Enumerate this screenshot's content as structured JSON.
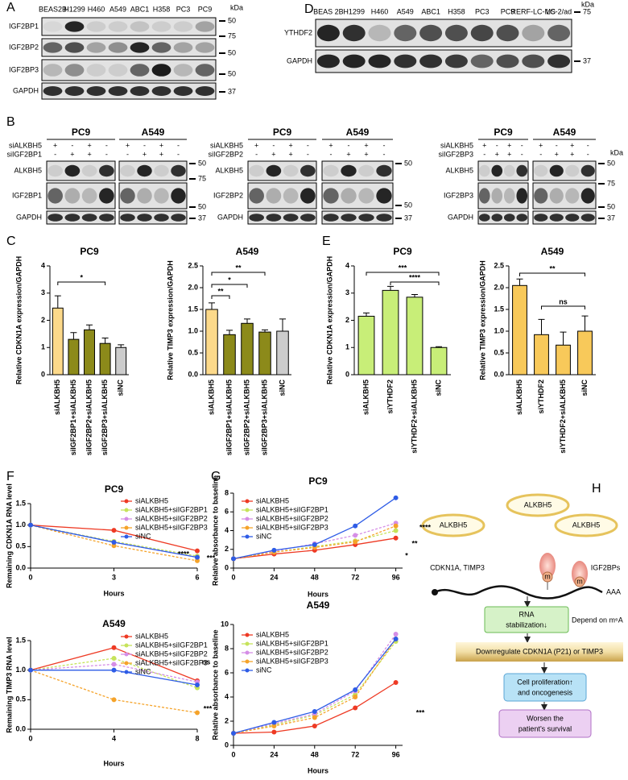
{
  "panels": [
    "A",
    "B",
    "C",
    "D",
    "E",
    "F",
    "G",
    "H"
  ],
  "blots": {
    "A": {
      "kda": "kDa",
      "lanes": [
        "BEAS2B",
        "H1299",
        "H460",
        "A549",
        "ABC1",
        "H358",
        "PC3",
        "PC9"
      ],
      "rows": [
        "IGF2BP1",
        "IGF2BP2",
        "IGF2BP3",
        "GAPDH"
      ],
      "markers": [
        50,
        75,
        50,
        50,
        37
      ]
    },
    "D": {
      "kda": "kDa",
      "lanes": [
        "BEAS 2B",
        "H1299",
        "H460",
        "A549",
        "ABC1",
        "H358",
        "PC3",
        "PC9",
        "RERF-LC-MS",
        "LC-2/ad"
      ],
      "rows": [
        "YTHDF2",
        "GAPDH"
      ],
      "markers": [
        75,
        37
      ]
    },
    "B": {
      "kda": "kDa",
      "sets": [
        {
          "cells": [
            "PC9",
            "A549"
          ],
          "treat": [
            {
              "label": "siALKBH5",
              "signs": [
                "+",
                "-",
                "+",
                "-",
                "+",
                "-",
                "+",
                "-"
              ]
            },
            {
              "label": "siIGF2BP1",
              "signs": [
                "-",
                "+",
                "+",
                "-",
                "-",
                "+",
                "+",
                "-"
              ]
            }
          ],
          "rows": [
            "ALKBH5",
            "IGF2BP1",
            "GAPDH"
          ],
          "markers": [
            50,
            75,
            50,
            37
          ]
        },
        {
          "cells": [
            "PC9",
            "A549"
          ],
          "treat": [
            {
              "label": "siALKBH5",
              "signs": [
                "+",
                "-",
                "+",
                "-",
                "+",
                "-",
                "+",
                "-"
              ]
            },
            {
              "label": "siIGF2BP2",
              "signs": [
                "-",
                "+",
                "+",
                "-",
                "-",
                "+",
                "+",
                "-"
              ]
            }
          ],
          "rows": [
            "ALKBH5",
            "IGF2BP2",
            "GAPDH"
          ],
          "markers": [
            50,
            50,
            37
          ]
        },
        {
          "cells": [
            "PC9",
            "A549"
          ],
          "treat": [
            {
              "label": "siALKBH5",
              "signs": [
                "+",
                "-",
                "+",
                "-",
                "+",
                "-",
                "+",
                "-"
              ]
            },
            {
              "label": "siIGF2BP3",
              "signs": [
                "-",
                "+",
                "+",
                "-",
                "-",
                "+",
                "+",
                "-"
              ]
            }
          ],
          "rows": [
            "ALKBH5",
            "IGF2BP3",
            "GAPDH"
          ],
          "markers": [
            50,
            75,
            50,
            37
          ]
        }
      ]
    }
  },
  "chart_data": [
    {
      "type": "bar",
      "title": "PC9",
      "ylabel": "Relative CDKN1A expression/GAPDH",
      "categories": [
        "siALKBH5",
        "siIGF2BP1+siALKBH5",
        "siIGF2BP2+siALKBH5",
        "siIGF2BP3+siALKBH5",
        "siNC"
      ],
      "values": [
        2.45,
        1.3,
        1.65,
        1.15,
        1.0
      ],
      "errors": [
        0.45,
        0.25,
        0.18,
        0.2,
        0.1
      ],
      "colors": [
        "#fcd98a",
        "#8c8a1a",
        "#8c8a1a",
        "#8c8a1a",
        "#cccccc"
      ],
      "ylim": [
        0,
        4
      ],
      "yticks": [
        0,
        1,
        2,
        3,
        4
      ],
      "annotations": [
        "*"
      ]
    },
    {
      "type": "bar",
      "title": "A549",
      "ylabel": "Relative TIMP3 expression/GAPDH",
      "categories": [
        "siALKBH5",
        "siIGF2BP1+siALKBH5",
        "siIGF2BP2+siALKBH5",
        "siIGF2BP3+siALKBH5",
        "siNC"
      ],
      "values": [
        1.5,
        0.92,
        1.18,
        0.98,
        1.0
      ],
      "errors": [
        0.15,
        0.1,
        0.1,
        0.05,
        0.28
      ],
      "colors": [
        "#fcd98a",
        "#8c8a1a",
        "#8c8a1a",
        "#8c8a1a",
        "#cccccc"
      ],
      "ylim": [
        0,
        2.5
      ],
      "yticks": [
        {
          "value": 0,
          "label": "0.0"
        },
        {
          "value": 0.5,
          "label": "0.5"
        },
        {
          "value": 1,
          "label": "1.0"
        },
        {
          "value": 1.5,
          "label": "1.5"
        },
        {
          "value": 2,
          "label": "2.0"
        },
        {
          "value": 2.5,
          "label": "2.5"
        }
      ],
      "annotations": [
        "**",
        "*",
        "**"
      ]
    },
    {
      "type": "bar",
      "title": "PC9",
      "ylabel": "Relative CDKN1A expression/GAPDH",
      "categories": [
        "siALKBH5",
        "siYTHDF2",
        "siYTHDF2+siALKBH5",
        "siNC"
      ],
      "values": [
        2.15,
        3.1,
        2.85,
        1.0
      ],
      "errors": [
        0.12,
        0.15,
        0.1,
        0.03
      ],
      "colors": [
        "#c8ee78",
        "#c8ee78",
        "#c8ee78",
        "#c8ee78"
      ],
      "ylim": [
        0,
        4
      ],
      "yticks": [
        0,
        1,
        2,
        3,
        4
      ],
      "annotations": [
        "***",
        "****"
      ]
    },
    {
      "type": "bar",
      "title": "A549",
      "ylabel": "Relative TIMP3 expression/GAPDH",
      "categories": [
        "siALKBH5",
        "siYTHDF2",
        "siYTHDF2+siALKBH5",
        "siNC"
      ],
      "values": [
        2.05,
        0.92,
        0.68,
        1.0
      ],
      "errors": [
        0.15,
        0.35,
        0.3,
        0.35
      ],
      "colors": [
        "#f8c95a",
        "#f8c95a",
        "#f8c95a",
        "#f8c95a"
      ],
      "ylim": [
        0,
        2.5
      ],
      "yticks": [
        {
          "value": 0,
          "label": "0.0"
        },
        {
          "value": 0.5,
          "label": "0.5"
        },
        {
          "value": 1,
          "label": "1.0"
        },
        {
          "value": 1.5,
          "label": "1.5"
        },
        {
          "value": 2,
          "label": "2.0"
        },
        {
          "value": 2.5,
          "label": "2.5"
        }
      ],
      "annotations": [
        "**",
        "ns"
      ]
    },
    {
      "type": "line",
      "title": "PC9",
      "xlabel": "Hours",
      "ylabel": "Remaining CDKN1A RNA level",
      "x": [
        0,
        3,
        6
      ],
      "xlim": [
        0,
        6
      ],
      "xticks": [
        0,
        3,
        6
      ],
      "ylim": [
        0,
        1.5
      ],
      "yticks": [
        {
          "value": 0,
          "label": "0.0"
        },
        {
          "value": 0.5,
          "label": "0.5"
        },
        {
          "value": 1,
          "label": "1.0"
        },
        {
          "value": 1.5,
          "label": "1.5"
        }
      ],
      "series": [
        {
          "name": "siALKBH5",
          "color": "#ee3a24",
          "values": [
            1.0,
            0.88,
            0.4
          ]
        },
        {
          "name": "siALKBH5+siIGF2BP1",
          "color": "#c6e35a",
          "values": [
            1.0,
            0.62,
            0.28
          ]
        },
        {
          "name": "siALKBH5+siIGF2BP2",
          "color": "#d58ee6",
          "values": [
            1.0,
            0.6,
            0.25
          ]
        },
        {
          "name": "siALKBH5+siIGF2BP3",
          "color": "#f5a32a",
          "values": [
            1.0,
            0.52,
            0.17
          ]
        },
        {
          "name": "siNC",
          "color": "#2e5ce6",
          "values": [
            1.0,
            0.6,
            0.25
          ]
        }
      ],
      "annotations": [
        "****",
        "***"
      ]
    },
    {
      "type": "line",
      "title": "A549",
      "xlabel": "Hours",
      "ylabel": "Remaining TIMP3 RNA level",
      "x": [
        0,
        4,
        8
      ],
      "xlim": [
        0,
        8
      ],
      "xticks": [
        0,
        4,
        8
      ],
      "ylim": [
        0,
        1.5
      ],
      "yticks": [
        {
          "value": 0,
          "label": "0.0"
        },
        {
          "value": 0.5,
          "label": "0.5"
        },
        {
          "value": 1,
          "label": "1.0"
        },
        {
          "value": 1.5,
          "label": "1.5"
        }
      ],
      "series": [
        {
          "name": "siALKBH5",
          "color": "#ee3a24",
          "values": [
            1.0,
            1.38,
            0.82
          ]
        },
        {
          "name": "siALKBH5+siIGF2BP1",
          "color": "#c6e35a",
          "values": [
            1.0,
            1.2,
            0.7
          ]
        },
        {
          "name": "siALKBH5+siIGF2BP2",
          "color": "#d58ee6",
          "values": [
            1.0,
            1.1,
            0.8
          ]
        },
        {
          "name": "siALKBH5+siIGF2BP3",
          "color": "#f5a32a",
          "values": [
            1.0,
            0.5,
            0.28
          ]
        },
        {
          "name": "siNC",
          "color": "#2e5ce6",
          "values": [
            1.0,
            1.0,
            0.75
          ]
        }
      ],
      "annotations": [
        "ns",
        "***"
      ]
    },
    {
      "type": "line",
      "title": "PC9",
      "xlabel": "Hours",
      "ylabel": "Relative absorbance to baseline",
      "x": [
        0,
        24,
        48,
        72,
        96
      ],
      "xlim": [
        0,
        100
      ],
      "xticks": [
        0,
        24,
        48,
        72,
        96
      ],
      "ylim": [
        0,
        8
      ],
      "yticks": [
        0,
        2,
        4,
        6,
        8
      ],
      "series": [
        {
          "name": "siALKBH5",
          "color": "#ee3a24",
          "values": [
            1,
            1.5,
            1.9,
            2.5,
            3.2
          ]
        },
        {
          "name": "siALKBH5+siIGF2BP1",
          "color": "#c6e35a",
          "values": [
            1,
            1.7,
            2.3,
            2.9,
            4.0
          ]
        },
        {
          "name": "siALKBH5+siIGF2BP2",
          "color": "#d58ee6",
          "values": [
            1,
            1.8,
            2.6,
            3.5,
            4.8
          ]
        },
        {
          "name": "siALKBH5+siIGF2BP3",
          "color": "#f5a32a",
          "values": [
            1,
            1.7,
            2.2,
            2.8,
            4.5
          ]
        },
        {
          "name": "siNC",
          "color": "#2e5ce6",
          "values": [
            1,
            1.9,
            2.5,
            4.5,
            7.5
          ]
        }
      ],
      "annotations": [
        "****",
        "**",
        "*"
      ]
    },
    {
      "type": "line",
      "title": "A549",
      "xlabel": "Hours",
      "ylabel": "Relative absorbance to baseline",
      "x": [
        0,
        24,
        48,
        72,
        96
      ],
      "xlim": [
        0,
        100
      ],
      "xticks": [
        0,
        24,
        48,
        72,
        96
      ],
      "ylim": [
        0,
        10
      ],
      "yticks": [
        0,
        2,
        4,
        6,
        8,
        10
      ],
      "series": [
        {
          "name": "siALKBH5",
          "color": "#ee3a24",
          "values": [
            1,
            1.1,
            1.6,
            3.1,
            5.2
          ]
        },
        {
          "name": "siALKBH5+siIGF2BP1",
          "color": "#c6e35a",
          "values": [
            1,
            1.7,
            2.5,
            4.2,
            8.6
          ]
        },
        {
          "name": "siALKBH5+siIGF2BP2",
          "color": "#d58ee6",
          "values": [
            1,
            1.8,
            2.6,
            4.5,
            9.2
          ]
        },
        {
          "name": "siALKBH5+siIGF2BP3",
          "color": "#f5a32a",
          "values": [
            1,
            1.6,
            2.3,
            4.0,
            8.8
          ]
        },
        {
          "name": "siNC",
          "color": "#2e5ce6",
          "values": [
            1,
            1.9,
            2.8,
            4.6,
            8.8
          ]
        }
      ],
      "annotations": [
        "***"
      ]
    }
  ],
  "diagram": {
    "enzyme": [
      "ALKBH5",
      "ALKBH5",
      "ALKBH5"
    ],
    "targets": "CDKN1A, TIMP3",
    "readers": "IGF2BPs",
    "mark": [
      "m",
      "m"
    ],
    "tail": "AAA",
    "stabilization": [
      "RNA",
      "stabilization↓"
    ],
    "depend": "Depend on m⁶A",
    "downregulate": "Downregulate CDKN1A (P21) or TIMP3",
    "proliferation": [
      "Cell proliferation↑",
      "and oncogenesis"
    ],
    "survival": [
      "Worsen the",
      "patient’s survival"
    ]
  }
}
